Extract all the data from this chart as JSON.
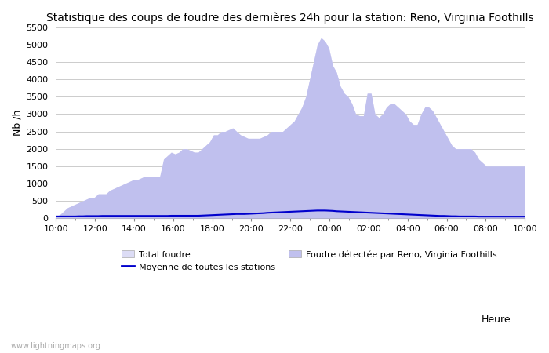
{
  "title": "Statistique des coups de foudre des dernières 24h pour la station: Reno, Virginia Foothills",
  "xlabel": "Heure",
  "ylabel": "Nb /h",
  "ylim": [
    0,
    5500
  ],
  "yticks": [
    0,
    500,
    1000,
    1500,
    2000,
    2500,
    3000,
    3500,
    4000,
    4500,
    5000,
    5500
  ],
  "x_labels": [
    "10:00",
    "12:00",
    "14:00",
    "16:00",
    "18:00",
    "20:00",
    "22:00",
    "00:00",
    "02:00",
    "04:00",
    "06:00",
    "08:00",
    "10:00"
  ],
  "background_color": "#ffffff",
  "plot_bg_color": "#ffffff",
  "grid_color": "#cccccc",
  "total_foudre_color": "#dcdcf5",
  "detected_color": "#c0c0ee",
  "moyenne_color": "#0000cc",
  "watermark": "www.lightningmaps.org",
  "total_foudre": [
    50,
    100,
    200,
    300,
    350,
    400,
    450,
    500,
    550,
    600,
    600,
    700,
    700,
    700,
    800,
    850,
    900,
    950,
    1000,
    1050,
    1100,
    1100,
    1150,
    1200,
    1200,
    1200,
    1200,
    1200,
    1700,
    1800,
    1900,
    1850,
    1900,
    2000,
    2000,
    1950,
    1900,
    1900,
    2000,
    2100,
    2200,
    2400,
    2400,
    2500,
    2500,
    2550,
    2600,
    2500,
    2400,
    2350,
    2300,
    2300,
    2300,
    2300,
    2350,
    2400,
    2500,
    2500,
    2500,
    2500,
    2600,
    2700,
    2800,
    3000,
    3200,
    3500,
    4000,
    4500,
    5000,
    5200,
    5100,
    4900,
    4400,
    4200,
    3800,
    3600,
    3500,
    3300,
    3000,
    2950,
    2950,
    3600,
    3600,
    3000,
    2900,
    3000,
    3200,
    3300,
    3300,
    3200,
    3100,
    3000,
    2800,
    2700,
    2700,
    3000,
    3200,
    3200,
    3100,
    2900,
    2700,
    2500,
    2300,
    2100,
    2000,
    2000,
    2000,
    2000,
    2000,
    1900,
    1700,
    1600,
    1500,
    1500,
    1500,
    1500,
    1500,
    1500,
    1500,
    1500,
    1500,
    1500,
    1500
  ],
  "detected": [
    50,
    100,
    200,
    300,
    350,
    400,
    450,
    500,
    550,
    600,
    600,
    700,
    700,
    700,
    800,
    850,
    900,
    950,
    1000,
    1050,
    1100,
    1100,
    1150,
    1200,
    1200,
    1200,
    1200,
    1200,
    1700,
    1800,
    1900,
    1850,
    1900,
    2000,
    2000,
    1950,
    1900,
    1900,
    2000,
    2100,
    2200,
    2400,
    2400,
    2500,
    2500,
    2550,
    2600,
    2500,
    2400,
    2350,
    2300,
    2300,
    2300,
    2300,
    2350,
    2400,
    2500,
    2500,
    2500,
    2500,
    2600,
    2700,
    2800,
    3000,
    3200,
    3500,
    4000,
    4500,
    5000,
    5200,
    5100,
    4900,
    4400,
    4200,
    3800,
    3600,
    3500,
    3300,
    3000,
    2950,
    2950,
    3600,
    3600,
    3000,
    2900,
    3000,
    3200,
    3300,
    3300,
    3200,
    3100,
    3000,
    2800,
    2700,
    2700,
    3000,
    3200,
    3200,
    3100,
    2900,
    2700,
    2500,
    2300,
    2100,
    2000,
    2000,
    2000,
    2000,
    2000,
    1900,
    1700,
    1600,
    1500,
    1500,
    1500,
    1500,
    1500,
    1500,
    1500,
    1500,
    1500,
    1500,
    1500
  ],
  "moyenne": [
    50,
    50,
    50,
    50,
    50,
    50,
    55,
    55,
    60,
    60,
    60,
    60,
    65,
    65,
    65,
    65,
    65,
    65,
    65,
    65,
    65,
    65,
    65,
    65,
    65,
    65,
    65,
    65,
    65,
    65,
    70,
    70,
    70,
    70,
    70,
    70,
    70,
    70,
    75,
    80,
    85,
    90,
    95,
    100,
    105,
    110,
    115,
    120,
    120,
    120,
    125,
    130,
    135,
    140,
    145,
    155,
    160,
    165,
    170,
    175,
    180,
    185,
    190,
    195,
    200,
    205,
    210,
    215,
    220,
    220,
    220,
    215,
    210,
    200,
    195,
    190,
    185,
    180,
    175,
    170,
    165,
    160,
    155,
    150,
    145,
    140,
    135,
    130,
    125,
    120,
    115,
    110,
    105,
    100,
    95,
    90,
    85,
    80,
    75,
    70,
    65,
    65,
    60,
    55,
    55,
    50,
    50,
    50,
    50,
    50,
    45,
    45,
    45,
    45,
    45,
    45,
    45,
    45,
    45,
    45,
    45,
    45,
    45
  ]
}
